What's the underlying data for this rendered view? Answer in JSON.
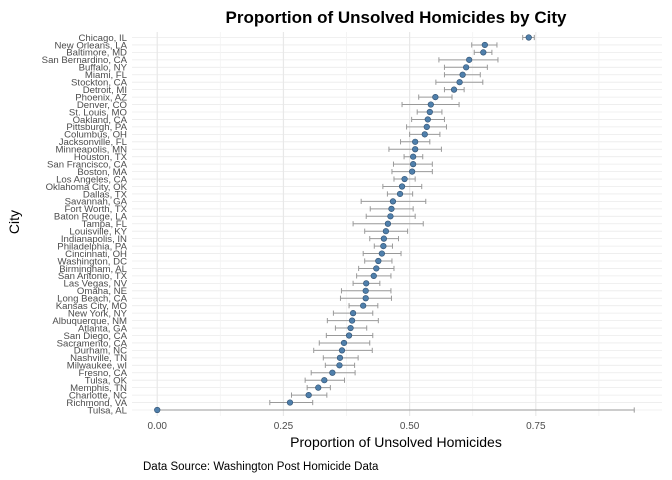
{
  "chart_data": {
    "type": "scatter",
    "title": "Proportion of Unsolved Homicides by City",
    "xlabel": "Proportion of Unsolved Homicides",
    "ylabel": "City",
    "caption": "Data Source: Washington Post Homicide Data",
    "xlim": [
      -0.05,
      1.0
    ],
    "x_ticks": [
      {
        "value": 0.0,
        "label": "0.00"
      },
      {
        "value": 0.25,
        "label": "0.25"
      },
      {
        "value": 0.5,
        "label": "0.50"
      },
      {
        "value": 0.75,
        "label": "0.75"
      }
    ],
    "grid": true,
    "point_color": "#4f7fab",
    "errorbar_color": "#9a9a9a",
    "cities": [
      {
        "name": "Chicago, IL",
        "estimate": 0.736,
        "low": 0.724,
        "high": 0.747
      },
      {
        "name": "New Orleans, LA",
        "estimate": 0.649,
        "low": 0.623,
        "high": 0.673
      },
      {
        "name": "Baltimore, MD",
        "estimate": 0.646,
        "low": 0.628,
        "high": 0.663
      },
      {
        "name": "San Bernardino, CA",
        "estimate": 0.618,
        "low": 0.558,
        "high": 0.675
      },
      {
        "name": "Buffalo, NY",
        "estimate": 0.612,
        "low": 0.569,
        "high": 0.654
      },
      {
        "name": "Miami, FL",
        "estimate": 0.605,
        "low": 0.569,
        "high": 0.64
      },
      {
        "name": "Stockton, CA",
        "estimate": 0.599,
        "low": 0.552,
        "high": 0.645
      },
      {
        "name": "Detroit, MI",
        "estimate": 0.588,
        "low": 0.569,
        "high": 0.608
      },
      {
        "name": "Phoenix, AZ",
        "estimate": 0.551,
        "low": 0.518,
        "high": 0.584
      },
      {
        "name": "Denver, CO",
        "estimate": 0.542,
        "low": 0.485,
        "high": 0.598
      },
      {
        "name": "St. Louis, MO",
        "estimate": 0.54,
        "low": 0.515,
        "high": 0.564
      },
      {
        "name": "Oakland, CA",
        "estimate": 0.536,
        "low": 0.504,
        "high": 0.569
      },
      {
        "name": "Pittsburgh, PA",
        "estimate": 0.534,
        "low": 0.494,
        "high": 0.573
      },
      {
        "name": "Columbus, OH",
        "estimate": 0.53,
        "low": 0.5,
        "high": 0.56
      },
      {
        "name": "Jacksonville, FL",
        "estimate": 0.511,
        "low": 0.482,
        "high": 0.54
      },
      {
        "name": "Minneapolis, MN",
        "estimate": 0.511,
        "low": 0.459,
        "high": 0.563
      },
      {
        "name": "Houston, TX",
        "estimate": 0.507,
        "low": 0.489,
        "high": 0.526
      },
      {
        "name": "San Francisco, CA",
        "estimate": 0.507,
        "low": 0.468,
        "high": 0.545
      },
      {
        "name": "Boston, MA",
        "estimate": 0.505,
        "low": 0.465,
        "high": 0.545
      },
      {
        "name": "Los Angeles, CA",
        "estimate": 0.49,
        "low": 0.469,
        "high": 0.511
      },
      {
        "name": "Oklahoma City, OK",
        "estimate": 0.485,
        "low": 0.447,
        "high": 0.524
      },
      {
        "name": "Dallas, TX",
        "estimate": 0.481,
        "low": 0.456,
        "high": 0.506
      },
      {
        "name": "Savannah, GA",
        "estimate": 0.467,
        "low": 0.404,
        "high": 0.532
      },
      {
        "name": "Fort Worth, TX",
        "estimate": 0.464,
        "low": 0.422,
        "high": 0.507
      },
      {
        "name": "Baton Rouge, LA",
        "estimate": 0.462,
        "low": 0.414,
        "high": 0.511
      },
      {
        "name": "Tampa, FL",
        "estimate": 0.457,
        "low": 0.388,
        "high": 0.527
      },
      {
        "name": "Louisville, KY",
        "estimate": 0.453,
        "low": 0.411,
        "high": 0.496
      },
      {
        "name": "Indianapolis, IN",
        "estimate": 0.449,
        "low": 0.421,
        "high": 0.478
      },
      {
        "name": "Philadelphia, PA",
        "estimate": 0.448,
        "low": 0.43,
        "high": 0.466
      },
      {
        "name": "Cincinnati, OH",
        "estimate": 0.445,
        "low": 0.408,
        "high": 0.483
      },
      {
        "name": "Washington, DC",
        "estimate": 0.438,
        "low": 0.411,
        "high": 0.465
      },
      {
        "name": "Birmingham, AL",
        "estimate": 0.434,
        "low": 0.399,
        "high": 0.469
      },
      {
        "name": "San Antonio, TX",
        "estimate": 0.429,
        "low": 0.395,
        "high": 0.463
      },
      {
        "name": "Las Vegas, NV",
        "estimate": 0.414,
        "low": 0.388,
        "high": 0.441
      },
      {
        "name": "Omaha, NE",
        "estimate": 0.413,
        "low": 0.365,
        "high": 0.463
      },
      {
        "name": "Long Beach, CA",
        "estimate": 0.413,
        "low": 0.363,
        "high": 0.464
      },
      {
        "name": "Kansas City, MO",
        "estimate": 0.408,
        "low": 0.38,
        "high": 0.437
      },
      {
        "name": "New York, NY",
        "estimate": 0.388,
        "low": 0.349,
        "high": 0.427
      },
      {
        "name": "Albuquerque, NM",
        "estimate": 0.386,
        "low": 0.337,
        "high": 0.438
      },
      {
        "name": "Atlanta, GA",
        "estimate": 0.383,
        "low": 0.353,
        "high": 0.415
      },
      {
        "name": "San Diego, CA",
        "estimate": 0.38,
        "low": 0.335,
        "high": 0.427
      },
      {
        "name": "Sacramento, CA",
        "estimate": 0.37,
        "low": 0.321,
        "high": 0.421
      },
      {
        "name": "Durham, NC",
        "estimate": 0.366,
        "low": 0.31,
        "high": 0.426
      },
      {
        "name": "Nashville, TN",
        "estimate": 0.362,
        "low": 0.329,
        "high": 0.398
      },
      {
        "name": "Milwaukee, wI",
        "estimate": 0.361,
        "low": 0.333,
        "high": 0.391
      },
      {
        "name": "Fresno, CA",
        "estimate": 0.347,
        "low": 0.305,
        "high": 0.392
      },
      {
        "name": "Tulsa, OK",
        "estimate": 0.331,
        "low": 0.293,
        "high": 0.371
      },
      {
        "name": "Memphis, TN",
        "estimate": 0.319,
        "low": 0.297,
        "high": 0.343
      },
      {
        "name": "Charlotte, NC",
        "estimate": 0.3,
        "low": 0.266,
        "high": 0.336
      },
      {
        "name": "Richmond, VA",
        "estimate": 0.263,
        "low": 0.223,
        "high": 0.308
      },
      {
        "name": "Tulsa, AL",
        "estimate": 0.0,
        "low": 0.0,
        "high": 0.945
      }
    ]
  }
}
